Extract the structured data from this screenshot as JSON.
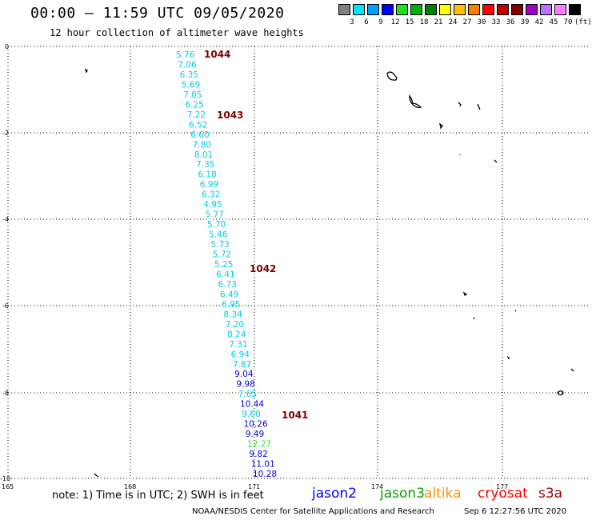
{
  "header": {
    "title": "00:00 – 11:59 UTC 09/05/2020",
    "subtitle": "12 hour collection of altimeter wave heights"
  },
  "legend": {
    "colors": [
      "#808080",
      "#00e5ff",
      "#00a0ff",
      "#0000ff",
      "#20e020",
      "#00b000",
      "#008000",
      "#ffff00",
      "#ffc000",
      "#ff8000",
      "#ff0000",
      "#c00000",
      "#800000",
      "#a000c0",
      "#c070ff",
      "#ff80ff",
      "#000000"
    ],
    "labels": [
      "3",
      "6",
      "9",
      "12",
      "15",
      "18",
      "21",
      "24",
      "27",
      "30",
      "33",
      "36",
      "39",
      "42",
      "45",
      "70",
      "(ft)"
    ]
  },
  "axes": {
    "x_ticks": [
      "165",
      "168",
      "171",
      "174",
      "177"
    ],
    "y_ticks": [
      "0",
      "-2",
      "-4",
      "-6",
      "-8",
      "-10"
    ]
  },
  "observations": [
    {
      "v": "5.76",
      "c": "#00ccee"
    },
    {
      "v": "7.06",
      "c": "#00ccee"
    },
    {
      "v": "6.35",
      "c": "#00ccee"
    },
    {
      "v": "5.69",
      "c": "#00ccee"
    },
    {
      "v": "7.05",
      "c": "#00ccee"
    },
    {
      "v": "6.25",
      "c": "#00ccee"
    },
    {
      "v": "7.22",
      "c": "#00ccee"
    },
    {
      "v": "6.52",
      "c": "#00ccee"
    },
    {
      "v": "6.60",
      "c": "#00ccee"
    },
    {
      "v": "7.80",
      "c": "#00ccee"
    },
    {
      "v": "8.01",
      "c": "#00ccee"
    },
    {
      "v": "7.35",
      "c": "#00ccee"
    },
    {
      "v": "6.18",
      "c": "#00ccee"
    },
    {
      "v": "6.99",
      "c": "#00ccee"
    },
    {
      "v": "6.32",
      "c": "#00ccee"
    },
    {
      "v": "4.95",
      "c": "#00ccee"
    },
    {
      "v": "5.77",
      "c": "#00ccee"
    },
    {
      "v": "5.70",
      "c": "#00ccee"
    },
    {
      "v": "5.46",
      "c": "#00ccee"
    },
    {
      "v": "5.73",
      "c": "#00ccee"
    },
    {
      "v": "5.72",
      "c": "#00ccee"
    },
    {
      "v": "5.25",
      "c": "#00ccee"
    },
    {
      "v": "6.41",
      "c": "#00ccee"
    },
    {
      "v": "6.73",
      "c": "#00ccee"
    },
    {
      "v": "6.49",
      "c": "#00ccee"
    },
    {
      "v": "6.95",
      "c": "#00ccee"
    },
    {
      "v": "8.34",
      "c": "#00ccee"
    },
    {
      "v": "7.20",
      "c": "#00ccee"
    },
    {
      "v": "8.24",
      "c": "#00ccee"
    },
    {
      "v": "7.31",
      "c": "#00ccee"
    },
    {
      "v": "6.94",
      "c": "#00ccee"
    },
    {
      "v": "7.87",
      "c": "#00ccee"
    },
    {
      "v": "9.04",
      "c": "#0000dd"
    },
    {
      "v": "9.98",
      "c": "#0000dd"
    },
    {
      "v": "7.65",
      "c": "#00ccee"
    },
    {
      "v": "10.44",
      "c": "#0000dd"
    },
    {
      "v": "9.60",
      "c": "#00ccee"
    },
    {
      "v": "10.26",
      "c": "#0000dd"
    },
    {
      "v": "9.49",
      "c": "#0000dd"
    },
    {
      "v": "12.27",
      "c": "#30e030"
    },
    {
      "v": "9.82",
      "c": "#0000dd"
    },
    {
      "v": "11.01",
      "c": "#0000dd"
    },
    {
      "v": "10.28",
      "c": "#0000dd"
    }
  ],
  "cycles": [
    "1044",
    "1043",
    "1042",
    "1041"
  ],
  "footer": {
    "note": "note: 1) Time is in UTC; 2) SWH is in feet",
    "satellites": [
      {
        "name": "jason2",
        "color": "#0000ff"
      },
      {
        "name": "jason3",
        "color": "#00a000"
      },
      {
        "name": "altika",
        "color": "#ff9000"
      },
      {
        "name": "cryosat",
        "color": "#ff0000"
      },
      {
        "name": "s3a",
        "color": "#a00000"
      }
    ],
    "credit": "NOAA/NESDIS Center for Satellite Applications and Research",
    "timestamp": "Sep  6 12:27:56 UTC 2020"
  }
}
